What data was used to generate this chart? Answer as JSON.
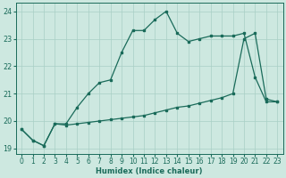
{
  "xlabel": "Humidex (Indice chaleur)",
  "background_color": "#cde8e0",
  "line_color": "#1a6b5a",
  "x_min": -0.5,
  "x_max": 23.5,
  "y_min": 18.8,
  "y_max": 24.3,
  "curve1_x": [
    0,
    1,
    2,
    3,
    4,
    5,
    6,
    7,
    8,
    9,
    10,
    11,
    12,
    13,
    14,
    15,
    16,
    17,
    18,
    19,
    20,
    21,
    22,
    23
  ],
  "curve1_y": [
    19.7,
    19.3,
    19.1,
    19.9,
    19.9,
    20.5,
    21.0,
    21.4,
    21.5,
    22.5,
    23.3,
    23.3,
    23.7,
    24.0,
    23.2,
    22.9,
    23.0,
    23.1,
    23.1,
    23.1,
    23.2,
    21.6,
    20.7,
    20.7
  ],
  "curve2_x": [
    0,
    1,
    2,
    3,
    4,
    5,
    6,
    7,
    8,
    9,
    10,
    11,
    12,
    13,
    14,
    15,
    16,
    17,
    18,
    19,
    20,
    21,
    22,
    23
  ],
  "curve2_y": [
    19.7,
    19.3,
    19.1,
    19.9,
    19.85,
    19.9,
    19.95,
    20.0,
    20.05,
    20.1,
    20.15,
    20.2,
    20.3,
    20.4,
    20.5,
    20.55,
    20.65,
    20.75,
    20.85,
    21.0,
    23.0,
    23.2,
    20.8,
    20.7
  ],
  "yticks": [
    19,
    20,
    21,
    22,
    23,
    24
  ],
  "xticks": [
    0,
    1,
    2,
    3,
    4,
    5,
    6,
    7,
    8,
    9,
    10,
    11,
    12,
    13,
    14,
    15,
    16,
    17,
    18,
    19,
    20,
    21,
    22,
    23
  ],
  "grid_color": "#a8cfc5",
  "font_color": "#1a6b5a",
  "marker_size": 1.8,
  "line_width": 0.9,
  "tick_fontsize": 5.5,
  "xlabel_fontsize": 6.0
}
